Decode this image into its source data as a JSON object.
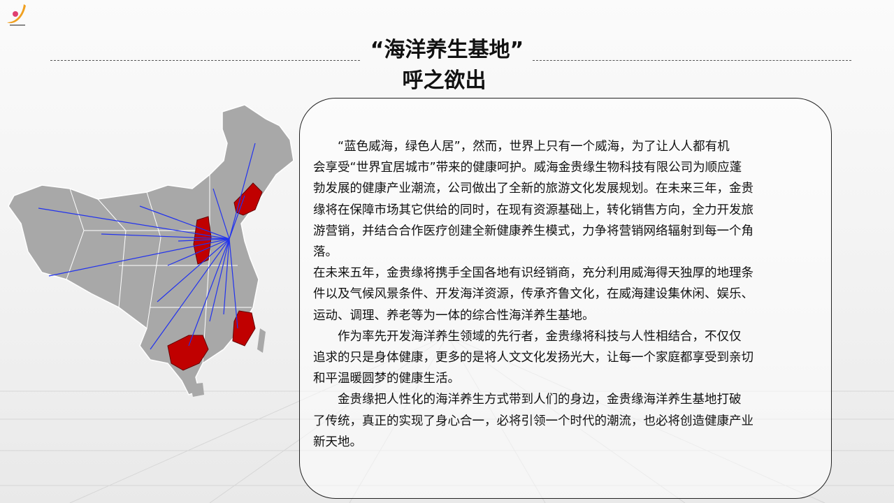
{
  "title": {
    "line1": "“海洋养生基地”",
    "line2": "呼之欲出"
  },
  "colors": {
    "highlight_province": "#c00000",
    "map_fill": "#a8a8a8",
    "radiating_lines": "#2233ee"
  },
  "logo": {
    "icon": "company-swoosh-logo"
  },
  "body_lines": [
    "　　“蓝色威海，绿色人居”，然而，世界上只有一个威海，为了让人人都有机",
    "会享受“世界宜居城市”带来的健康呵护。威海金贵缘生物科技有限公司为顺应蓬",
    "勃发展的健康产业潮流，公司做出了全新的旅游文化发展规划。在未来三年，金贵",
    "缘将在保障市场其它供给的同时，在现有资源基础上，转化销售方向，全力开发旅",
    "游营销，并结合合作医疗创建全新健康养生模式，力争将营销网络辐射到每一个角",
    "落。",
    "在未来五年，金贵缘将携手全国各地有识经销商，充分利用威海得天独厚的地理条",
    "件以及气候风景条件、开发海洋资源，传承齐鲁文化，在威海建设集休闲、娱乐、",
    "运动、调理、养老等为一体的综合性海洋养生基地。",
    "　　作为率先开发海洋养生领域的先行者，金贵缘将科技与人性相结合，不仅仅",
    "追求的只是身体健康，更多的是将人文文化发扬光大，让每一个家庭都享受到亲切",
    "和平温暖圆梦的健康生活。",
    "　　金贵缘把人性化的海洋养生方式带到人们的身边，金贵缘海洋养生基地打破",
    "了传统，真正的实现了身心合一，必将引领一个时代的潮流，也必将创造健康产业",
    "新天地。"
  ]
}
